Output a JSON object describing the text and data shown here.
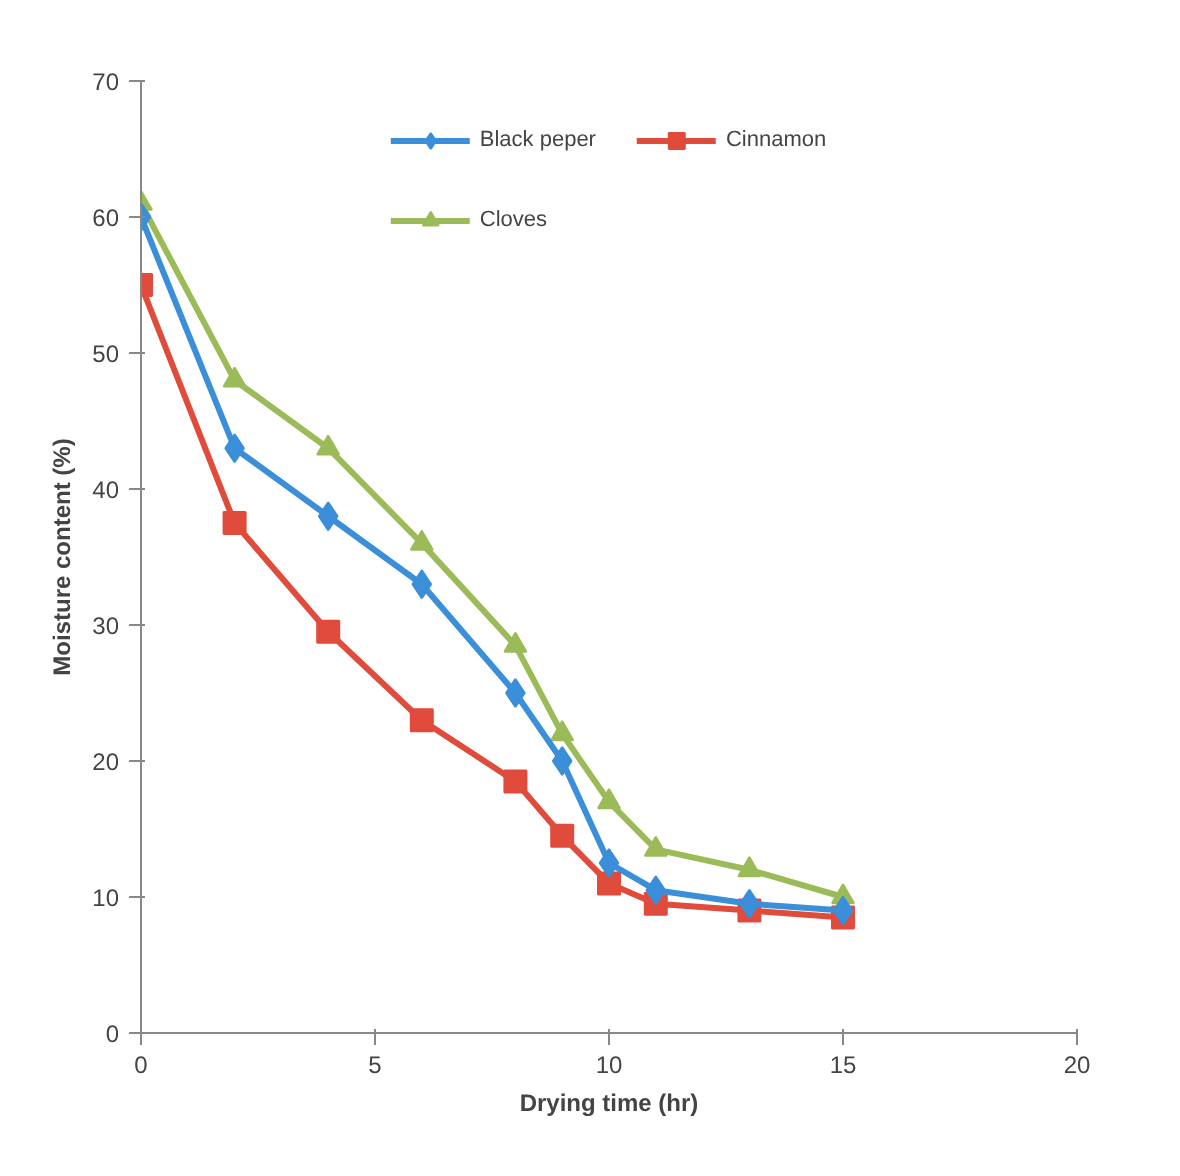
{
  "chart_data": {
    "type": "line",
    "xlabel": "Drying time (hr)",
    "ylabel": "Moisture content (%)",
    "x": [
      0,
      2,
      4,
      6,
      8,
      9,
      10,
      11,
      13,
      15
    ],
    "series": [
      {
        "name": "Black peper",
        "color": "#3b8ed8",
        "marker": "diamond",
        "values": [
          60,
          43,
          38,
          33,
          25,
          20,
          12.5,
          10.5,
          9.5,
          9
        ]
      },
      {
        "name": "Cloves",
        "color": "#9bbb59",
        "marker": "triangle",
        "values": [
          61,
          48,
          43,
          36,
          28.5,
          22,
          17,
          13.5,
          12,
          10
        ]
      },
      {
        "name": "Cinnamon",
        "color": "#e04b3c",
        "marker": "square",
        "values": [
          55,
          37.5,
          29.5,
          23,
          18.5,
          14.5,
          11,
          9.5,
          9,
          8.5
        ]
      }
    ],
    "xlim": [
      0,
      20
    ],
    "xticks": [
      0,
      5,
      10,
      15,
      20
    ],
    "ylim": [
      0,
      70
    ],
    "yticks": [
      0,
      10,
      20,
      30,
      40,
      50,
      60,
      70
    ],
    "grid": false,
    "legend": "top",
    "line_style": "solid"
  }
}
